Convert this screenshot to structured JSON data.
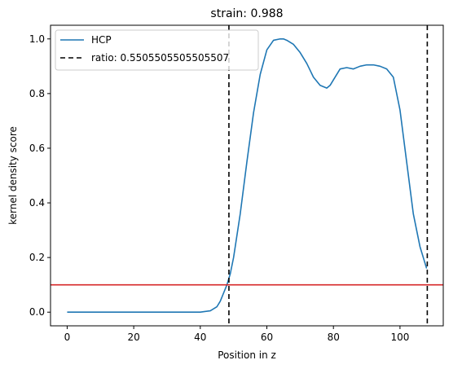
{
  "chart_data": {
    "type": "line",
    "title": "strain: 0.988",
    "xlabel": "Position in z",
    "ylabel": "kernel density score",
    "xlim": [
      -5,
      113
    ],
    "ylim": [
      -0.05,
      1.05
    ],
    "xticks": [
      0,
      20,
      40,
      60,
      80,
      100
    ],
    "yticks": [
      0.0,
      0.2,
      0.4,
      0.6,
      0.8,
      1.0
    ],
    "xtick_labels": [
      "0",
      "20",
      "40",
      "60",
      "80",
      "100"
    ],
    "ytick_labels": [
      "0.0",
      "0.2",
      "0.4",
      "0.6",
      "0.8",
      "1.0"
    ],
    "grid": false,
    "legend_position": "top-left",
    "series": [
      {
        "name": "HCP",
        "color": "#1f77b4",
        "x": [
          0,
          10,
          20,
          30,
          40,
          43,
          45,
          46,
          47,
          48,
          49,
          50,
          52,
          54,
          56,
          58,
          60,
          62,
          64,
          65,
          66,
          68,
          70,
          72,
          74,
          76,
          78,
          79,
          80,
          82,
          84,
          86,
          88,
          90,
          92,
          94,
          96,
          98,
          100,
          102,
          104,
          106,
          108
        ],
        "y": [
          0.0,
          0.0,
          0.0,
          0.0,
          0.0,
          0.005,
          0.02,
          0.04,
          0.07,
          0.1,
          0.14,
          0.2,
          0.36,
          0.55,
          0.73,
          0.87,
          0.96,
          0.995,
          1.0,
          1.0,
          0.995,
          0.98,
          0.95,
          0.91,
          0.86,
          0.83,
          0.82,
          0.83,
          0.85,
          0.89,
          0.895,
          0.89,
          0.9,
          0.905,
          0.905,
          0.9,
          0.89,
          0.86,
          0.74,
          0.55,
          0.36,
          0.24,
          0.16
        ]
      }
    ],
    "vlines": [
      {
        "x": 48.6,
        "style": "dashed",
        "color": "#000000",
        "label": "ratio: 0.5505505505505507"
      },
      {
        "x": 108.2,
        "style": "dashed",
        "color": "#000000"
      }
    ],
    "hline": {
      "y": 0.1,
      "color": "#d62728"
    }
  }
}
